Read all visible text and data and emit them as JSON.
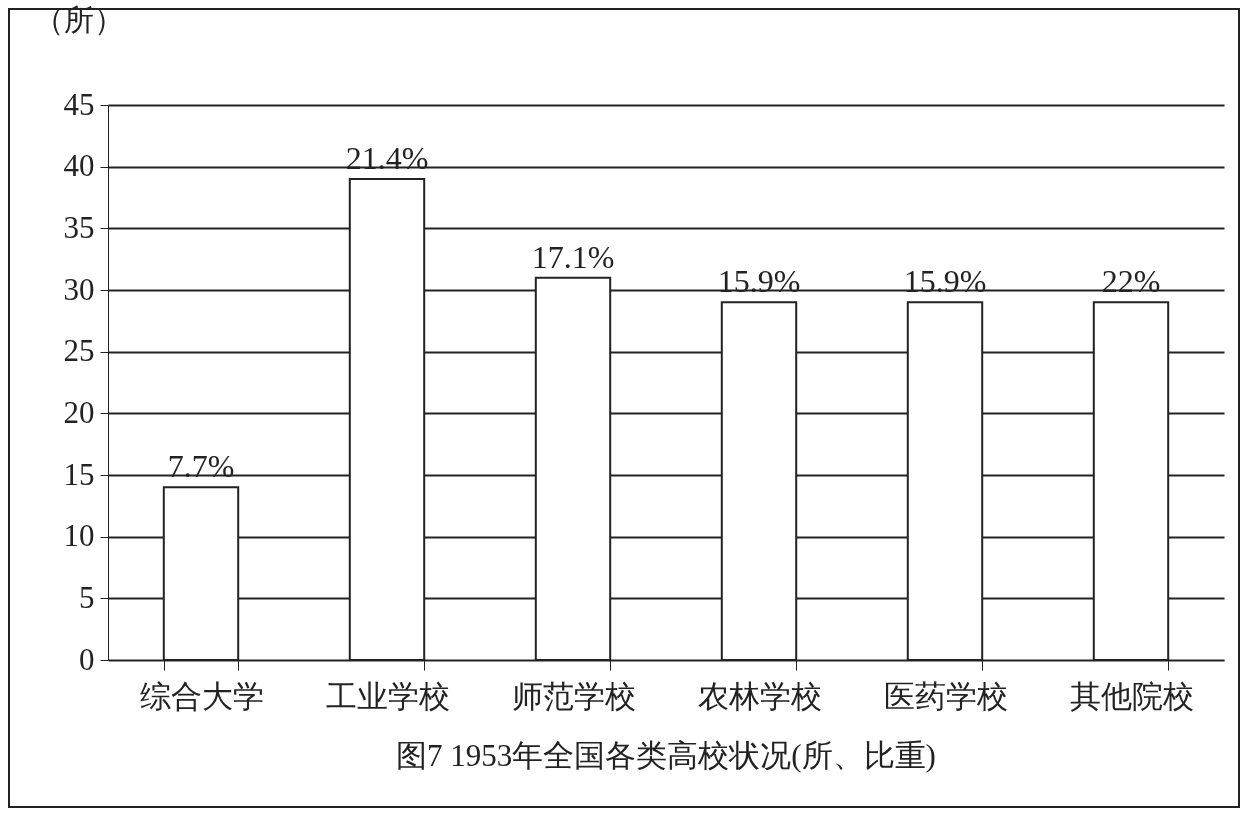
{
  "chart_data": {
    "type": "bar",
    "title": "图7   1953年全国各类高校状况(所、比重)",
    "ylabel": "（所）",
    "categories": [
      "综合大学",
      "工业学校",
      "师范学校",
      "农林学校",
      "医药学校",
      "其他院校"
    ],
    "values": [
      14,
      39,
      31,
      29,
      29,
      29
    ],
    "annotations": [
      {
        "text": "7.7%",
        "x": "综合大学",
        "y": 14
      },
      {
        "text": "21.4%",
        "x": "工业学校",
        "y": 39
      },
      {
        "text": "17.1%",
        "x": "师范学校",
        "y": 31
      },
      {
        "text": "15.9%",
        "x": "农林学校",
        "y": 29
      },
      {
        "text": "15.9%",
        "x": "医药学校",
        "y": 29
      },
      {
        "text": "22%",
        "x": "其他院校",
        "y": 29
      }
    ],
    "color": "#ffffff",
    "ylim": [
      0,
      45
    ],
    "yticks": [
      0,
      5,
      10,
      15,
      20,
      25,
      30,
      35,
      40,
      45
    ],
    "grid": "y"
  }
}
